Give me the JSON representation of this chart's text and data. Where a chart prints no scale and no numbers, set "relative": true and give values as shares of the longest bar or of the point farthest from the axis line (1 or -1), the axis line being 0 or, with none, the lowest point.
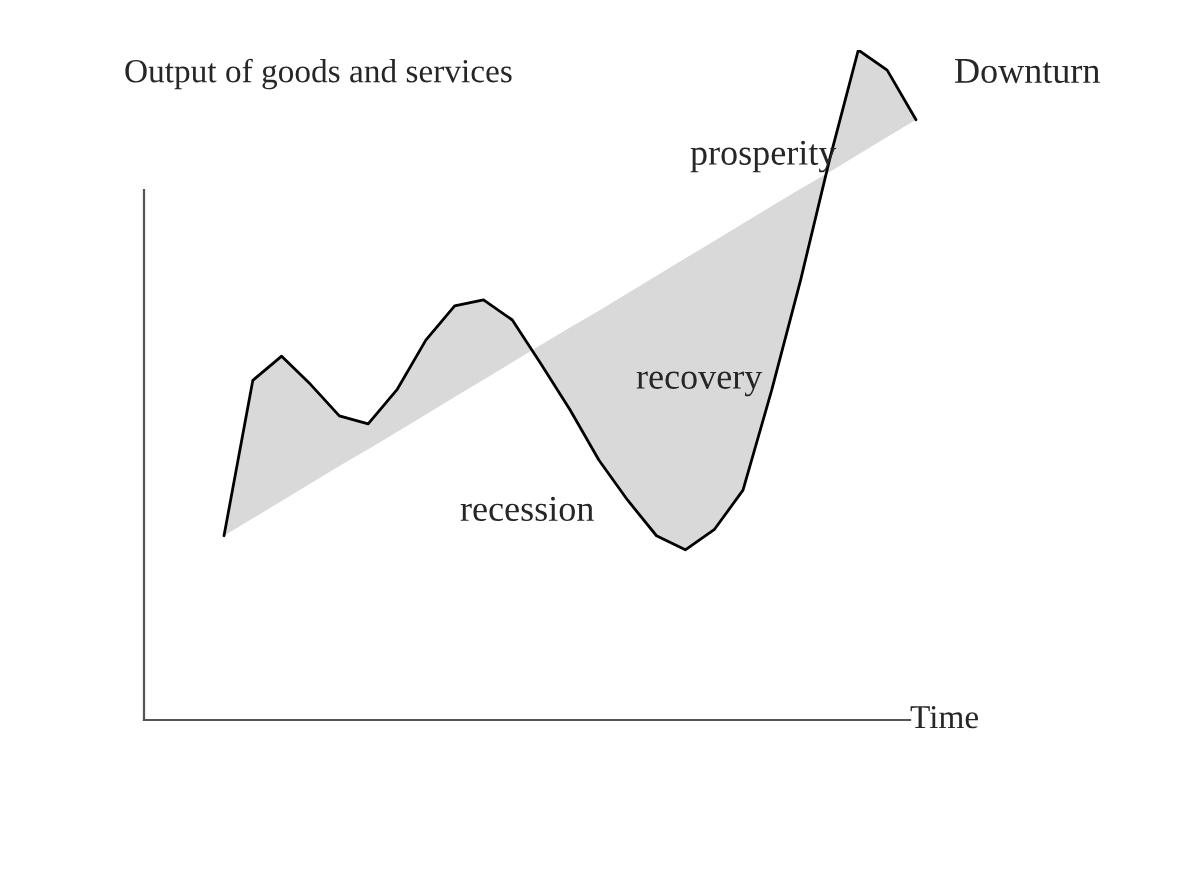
{
  "chart_data": {
    "type": "line",
    "relative": true,
    "xlabel": "Time",
    "ylabel": "Output of goods and services",
    "categories": [
      null,
      null,
      null,
      null,
      null,
      null,
      null,
      null,
      null,
      null,
      null,
      null,
      null,
      null,
      null,
      null,
      null,
      null,
      null,
      null,
      null,
      null,
      null,
      null,
      null
    ],
    "series": [
      {
        "color": "#000000",
        "values": [
          0.275,
          0.507,
          0.543,
          0.501,
          0.454,
          0.442,
          0.493,
          0.567,
          0.618,
          0.627,
          0.597,
          0.531,
          0.463,
          0.388,
          0.328,
          0.275,
          0.254,
          0.284,
          0.343,
          0.493,
          0.657,
          0.836,
          1.0,
          0.97,
          0.896
        ],
        "upper": [
          0.275,
          0.507,
          0.543,
          0.501,
          0.454,
          0.442,
          0.493,
          0.567,
          0.618,
          0.627,
          0.597,
          0.531,
          0.463,
          0.388,
          0.328,
          0.275,
          0.254,
          0.284,
          0.343,
          0.493,
          0.657,
          0.836,
          1.0,
          0.97,
          0.896
        ],
        "lower": [
          0.275,
          0.301,
          0.327,
          0.353,
          0.379,
          0.404,
          0.43,
          0.456,
          0.482,
          0.508,
          0.534,
          0.56,
          0.586,
          0.611,
          0.637,
          0.663,
          0.689,
          0.715,
          0.741,
          0.767,
          0.793,
          0.818,
          0.844,
          0.87,
          0.896
        ]
      }
    ],
    "annotations": [
      "prosperity",
      "recovery",
      "recession",
      "Downturn"
    ],
    "legend": false,
    "marker": "none",
    "line_style": "solid"
  }
}
